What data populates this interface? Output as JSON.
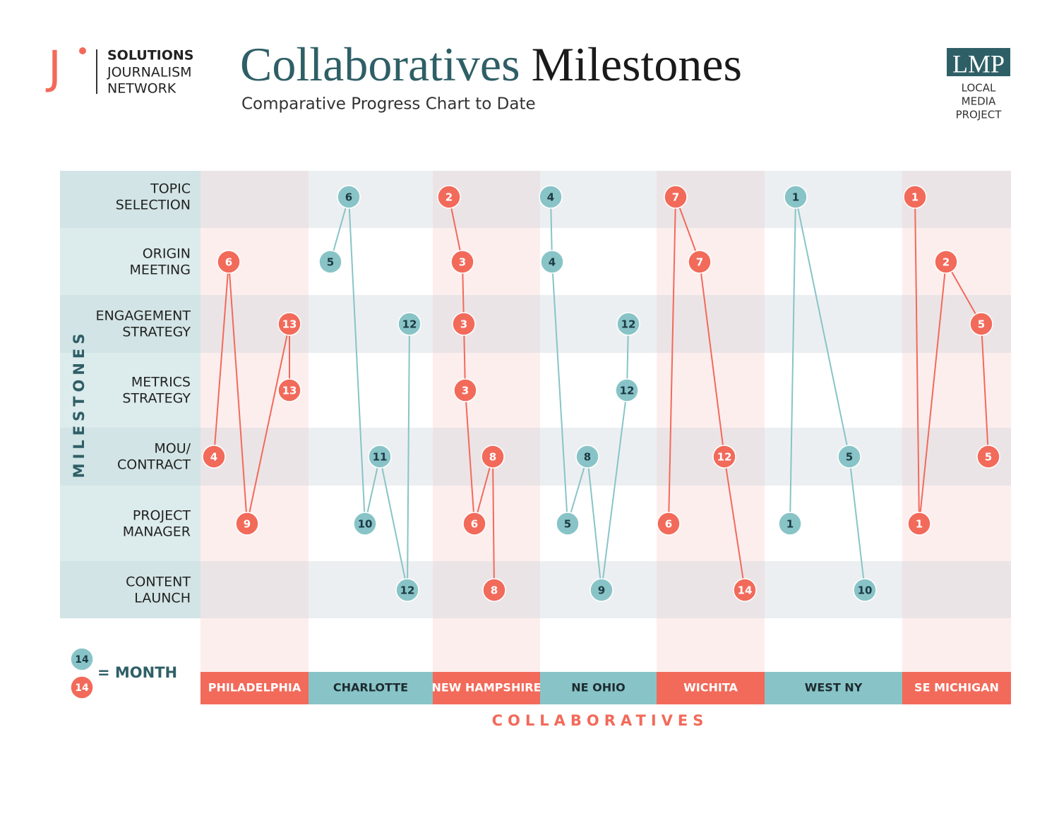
{
  "header": {
    "logo_mark": "J",
    "org_lines": [
      "SOLUTIONS",
      "JOURNALISM",
      "NETWORK"
    ],
    "title_part1": "Collaboratives",
    "title_part2": "Milestones",
    "subtitle": "Comparative Progress Chart to Date",
    "partner_logo": "LMP",
    "partner_lines": [
      "LOCAL",
      "MEDIA",
      "PROJECT"
    ]
  },
  "chart_data": {
    "type": "milestone-path",
    "y_axis_label": "MILESTONES",
    "x_axis_label": "COLLABORATIVES",
    "milestones": [
      [
        "TOPIC",
        "SELECTION"
      ],
      [
        "ORIGIN",
        "MEETING"
      ],
      [
        "ENGAGEMENT",
        "STRATEGY"
      ],
      [
        "METRICS",
        "STRATEGY"
      ],
      [
        "MOU/",
        "CONTRACT"
      ],
      [
        "PROJECT",
        "MANAGER"
      ],
      [
        "CONTENT",
        "LAUNCH"
      ]
    ],
    "collaboratives": [
      {
        "name": "PHILADELPHIA",
        "color": "#f26a5a",
        "months": [
          null,
          6,
          13,
          13,
          4,
          9,
          null
        ]
      },
      {
        "name": "CHARLOTTE",
        "color": "#88c4c7",
        "months": [
          6,
          5,
          12,
          null,
          11,
          10,
          12
        ]
      },
      {
        "name": "NEW HAMPSHIRE",
        "color": "#f26a5a",
        "months": [
          2,
          3,
          3,
          3,
          8,
          6,
          8
        ]
      },
      {
        "name": "NE OHIO",
        "color": "#88c4c7",
        "months": [
          4,
          4,
          12,
          12,
          8,
          5,
          9
        ]
      },
      {
        "name": "WICHITA",
        "color": "#f26a5a",
        "months": [
          7,
          7,
          null,
          null,
          12,
          6,
          14
        ]
      },
      {
        "name": "WEST NY",
        "color": "#88c4c7",
        "months": [
          1,
          null,
          null,
          null,
          5,
          1,
          10
        ]
      },
      {
        "name": "SE MICHIGAN",
        "color": "#f26a5a",
        "months": [
          1,
          2,
          5,
          null,
          5,
          1,
          null
        ]
      }
    ],
    "legend": {
      "sample": 14,
      "label": "= MONTH"
    }
  }
}
